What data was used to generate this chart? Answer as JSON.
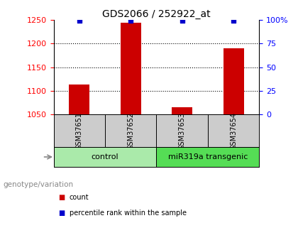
{
  "title": "GDS2066 / 252922_at",
  "samples": [
    "GSM37651",
    "GSM37652",
    "GSM37653",
    "GSM37654"
  ],
  "bar_values": [
    1113,
    1243,
    1065,
    1190
  ],
  "percentile_values": [
    99,
    99,
    99,
    99
  ],
  "bar_color": "#cc0000",
  "dot_color": "#0000cc",
  "ylim_left": [
    1050,
    1250
  ],
  "yticks_left": [
    1050,
    1100,
    1150,
    1200,
    1250
  ],
  "ylim_right": [
    0,
    100
  ],
  "yticks_right": [
    0,
    25,
    50,
    75,
    100
  ],
  "groups": [
    {
      "label": "control",
      "samples": [
        0,
        1
      ],
      "color": "#aaeaaa"
    },
    {
      "label": "miR319a transgenic",
      "samples": [
        2,
        3
      ],
      "color": "#55dd55"
    }
  ],
  "genotype_label": "genotype/variation",
  "legend_items": [
    {
      "label": "count",
      "color": "#cc0000"
    },
    {
      "label": "percentile rank within the sample",
      "color": "#0000cc"
    }
  ],
  "background_color": "#ffffff",
  "plot_bg_color": "#ffffff",
  "tick_area_color": "#cccccc",
  "title_fontsize": 10,
  "tick_fontsize": 8,
  "sample_fontsize": 7,
  "group_fontsize": 8,
  "legend_fontsize": 7,
  "genotype_fontsize": 7.5
}
